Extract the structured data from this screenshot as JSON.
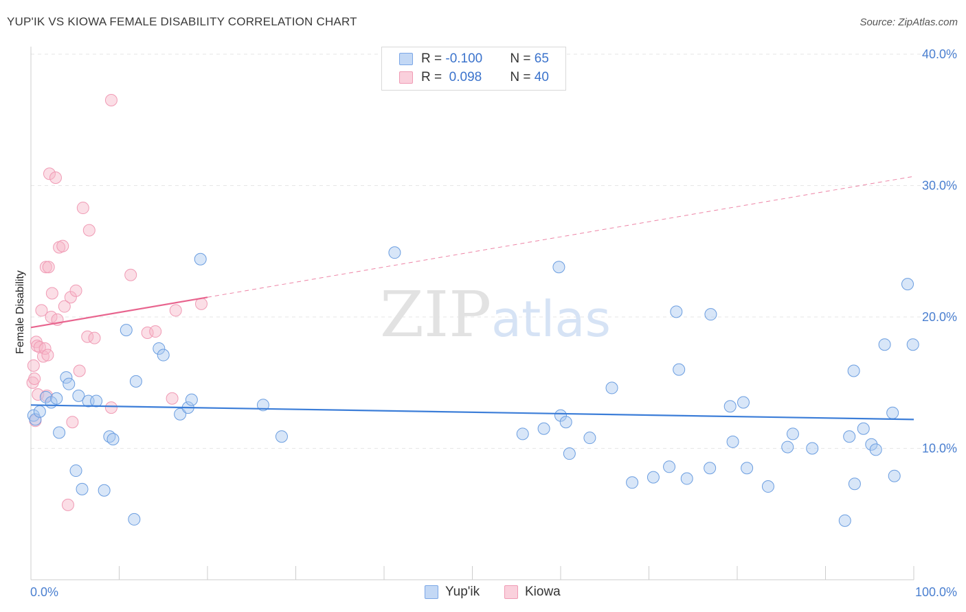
{
  "header": {
    "title": "YUP'IK VS KIOWA FEMALE DISABILITY CORRELATION CHART",
    "source": "Source: ZipAtlas.com"
  },
  "watermark": {
    "zip": "ZIP",
    "atlas": "atlas"
  },
  "legend": {
    "rows": [
      {
        "r_label": "R = ",
        "r_value": "-0.100",
        "n_label": "N = ",
        "n_value": "65",
        "color": "#a9c8f0"
      },
      {
        "r_label": "R = ",
        "r_value": " 0.098",
        "n_label": "N = ",
        "n_value": "40",
        "color": "#f7b6c8"
      }
    ]
  },
  "bottom_legend": {
    "items": [
      {
        "label": "Yup'ik",
        "color": "#a9c8f0"
      },
      {
        "label": "Kiowa",
        "color": "#f7b6c8"
      }
    ]
  },
  "chart_data": {
    "type": "scatter",
    "title": "YUP'IK VS KIOWA FEMALE DISABILITY CORRELATION CHART",
    "xlabel": "",
    "ylabel": "Female Disability",
    "xlim": [
      0,
      100
    ],
    "ylim": [
      0,
      40
    ],
    "x_tick_labels": [
      "0.0%",
      "100.0%"
    ],
    "y_ticks": [
      10,
      20,
      30,
      40
    ],
    "y_tick_labels": [
      "10.0%",
      "20.0%",
      "30.0%",
      "40.0%"
    ],
    "grid": true,
    "colors": {
      "yupik": "#3b7dd8",
      "yupik_fill": "#a9c8f0",
      "kiowa": "#e8648e",
      "kiowa_fill": "#f7b6c8"
    },
    "series": [
      {
        "name": "Yup'ik",
        "points": [
          [
            0.3,
            12.5
          ],
          [
            0.5,
            12.2
          ],
          [
            1.0,
            12.8
          ],
          [
            1.7,
            13.9
          ],
          [
            2.3,
            13.5
          ],
          [
            2.9,
            13.8
          ],
          [
            3.2,
            11.2
          ],
          [
            4.0,
            15.4
          ],
          [
            4.3,
            14.9
          ],
          [
            5.1,
            8.3
          ],
          [
            5.4,
            14.0
          ],
          [
            5.8,
            6.9
          ],
          [
            6.5,
            13.6
          ],
          [
            7.4,
            13.6
          ],
          [
            8.3,
            6.8
          ],
          [
            8.9,
            10.9
          ],
          [
            9.3,
            10.7
          ],
          [
            10.8,
            19.0
          ],
          [
            11.7,
            4.6
          ],
          [
            11.9,
            15.1
          ],
          [
            14.5,
            17.6
          ],
          [
            15.0,
            17.1
          ],
          [
            16.9,
            12.6
          ],
          [
            17.8,
            13.1
          ],
          [
            18.2,
            13.7
          ],
          [
            19.2,
            24.4
          ],
          [
            26.3,
            13.3
          ],
          [
            28.4,
            10.9
          ],
          [
            41.2,
            24.9
          ],
          [
            55.7,
            11.1
          ],
          [
            58.1,
            11.5
          ],
          [
            59.8,
            23.8
          ],
          [
            60.0,
            12.5
          ],
          [
            60.6,
            12.0
          ],
          [
            61.0,
            9.6
          ],
          [
            63.3,
            10.8
          ],
          [
            65.8,
            14.6
          ],
          [
            68.1,
            7.4
          ],
          [
            70.5,
            7.8
          ],
          [
            72.3,
            8.6
          ],
          [
            73.1,
            20.4
          ],
          [
            73.4,
            16.0
          ],
          [
            74.3,
            7.7
          ],
          [
            76.9,
            8.5
          ],
          [
            77.0,
            20.2
          ],
          [
            79.2,
            13.2
          ],
          [
            79.5,
            10.5
          ],
          [
            80.7,
            13.5
          ],
          [
            81.1,
            8.5
          ],
          [
            83.5,
            7.1
          ],
          [
            85.7,
            10.1
          ],
          [
            86.3,
            11.1
          ],
          [
            88.5,
            10.0
          ],
          [
            92.2,
            4.5
          ],
          [
            92.7,
            10.9
          ],
          [
            93.2,
            15.9
          ],
          [
            93.3,
            7.3
          ],
          [
            94.3,
            11.5
          ],
          [
            95.2,
            10.3
          ],
          [
            95.7,
            9.9
          ],
          [
            96.7,
            17.9
          ],
          [
            97.6,
            12.7
          ],
          [
            97.8,
            7.9
          ],
          [
            99.3,
            22.5
          ],
          [
            99.9,
            17.9
          ]
        ],
        "trend": {
          "x": [
            0,
            100
          ],
          "y": [
            13.3,
            12.2
          ]
        }
      },
      {
        "name": "Kiowa",
        "points": [
          [
            0.2,
            15.0
          ],
          [
            0.3,
            16.3
          ],
          [
            0.4,
            15.3
          ],
          [
            0.5,
            12.1
          ],
          [
            0.6,
            18.1
          ],
          [
            0.7,
            17.8
          ],
          [
            0.8,
            14.1
          ],
          [
            1.0,
            17.7
          ],
          [
            1.2,
            20.5
          ],
          [
            1.4,
            17.0
          ],
          [
            1.6,
            17.6
          ],
          [
            1.7,
            23.8
          ],
          [
            1.8,
            14.0
          ],
          [
            1.9,
            17.1
          ],
          [
            2.0,
            23.8
          ],
          [
            2.1,
            30.9
          ],
          [
            2.3,
            20.0
          ],
          [
            2.4,
            21.8
          ],
          [
            2.8,
            30.6
          ],
          [
            3.0,
            19.8
          ],
          [
            3.2,
            25.3
          ],
          [
            3.6,
            25.4
          ],
          [
            3.8,
            20.8
          ],
          [
            4.2,
            5.7
          ],
          [
            4.5,
            21.5
          ],
          [
            4.7,
            12.0
          ],
          [
            5.1,
            22.0
          ],
          [
            5.5,
            15.9
          ],
          [
            5.9,
            28.3
          ],
          [
            6.4,
            18.5
          ],
          [
            6.6,
            26.6
          ],
          [
            7.2,
            18.4
          ],
          [
            9.1,
            36.5
          ],
          [
            9.1,
            13.1
          ],
          [
            11.3,
            23.2
          ],
          [
            13.2,
            18.8
          ],
          [
            14.1,
            18.9
          ],
          [
            16.0,
            13.8
          ],
          [
            16.4,
            20.5
          ],
          [
            19.3,
            21.0
          ]
        ],
        "trend": {
          "x": [
            0,
            20
          ],
          "y": [
            19.2,
            21.5
          ]
        },
        "trend_extended": {
          "x": [
            20,
            100
          ],
          "y": [
            21.5,
            30.7
          ]
        }
      }
    ]
  }
}
